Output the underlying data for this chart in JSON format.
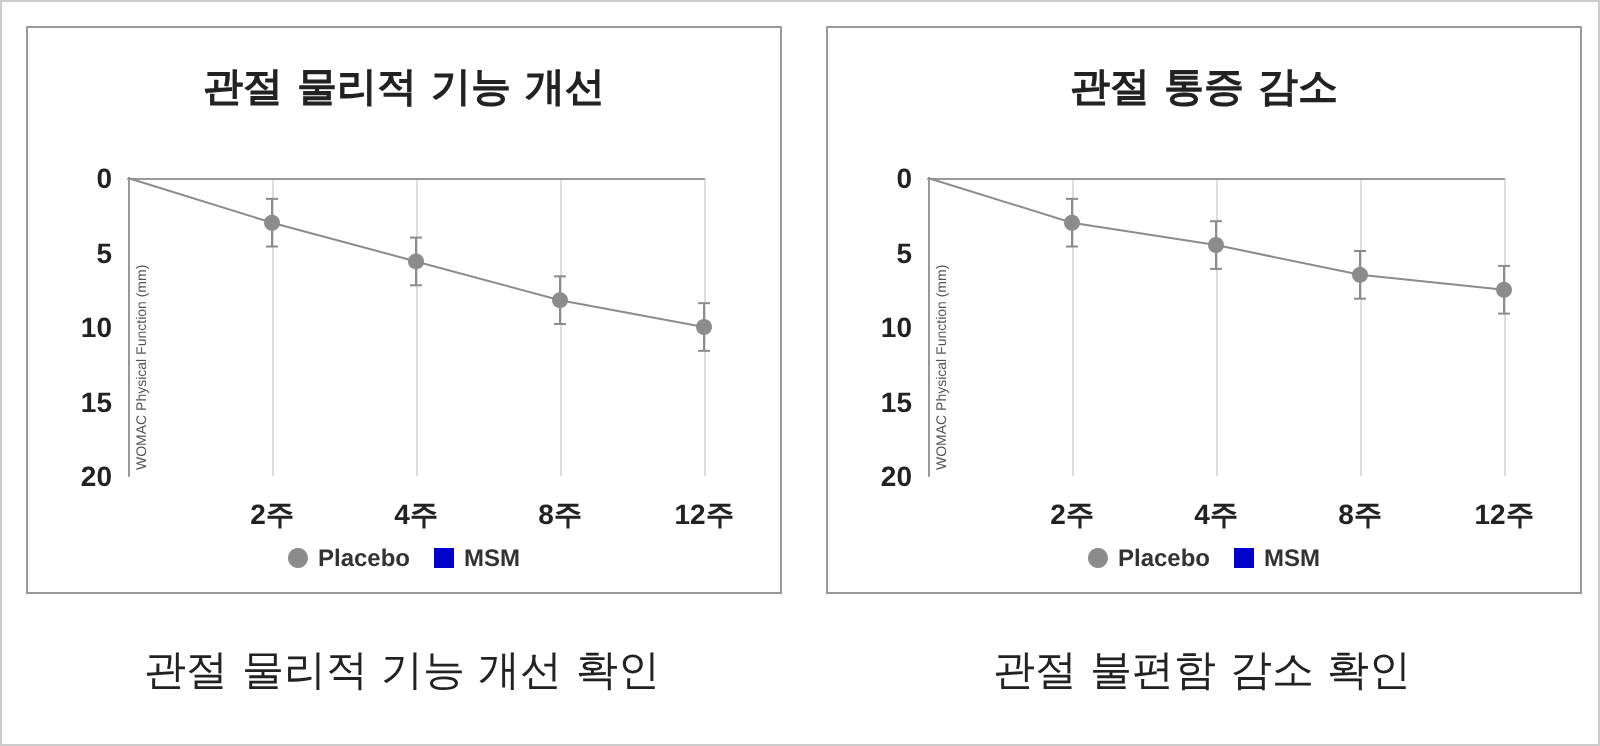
{
  "chart_data": [
    {
      "type": "line",
      "title": "관절 물리적 기능 개선",
      "ylabel": "WOMAC Physical Function (mm)",
      "categories": [
        null,
        "2주",
        "4주",
        "8주",
        "12주"
      ],
      "ylim": [
        20,
        0
      ],
      "yticks": [
        0,
        5,
        10,
        15,
        20
      ],
      "grid": "x",
      "legend": "bottom",
      "marker": "circle",
      "annotations": [
        "관절 물리적 기능 개선 확인"
      ],
      "series": [
        {
          "name": "Placebo",
          "color": "#8c8c8c",
          "values": [
            0,
            3,
            5.6,
            8.2,
            10
          ],
          "errors": [
            null,
            1.6,
            1.6,
            1.6,
            1.6
          ]
        },
        {
          "name": "MSM",
          "color": "#0000cc",
          "marker": "square",
          "values": [
            null,
            null,
            null,
            null,
            null
          ]
        }
      ]
    },
    {
      "type": "line",
      "title": "관절 통증 감소",
      "ylabel": "WOMAC Physical Function (mm)",
      "categories": [
        null,
        "2주",
        "4주",
        "8주",
        "12주"
      ],
      "ylim": [
        20,
        0
      ],
      "yticks": [
        0,
        5,
        10,
        15,
        20
      ],
      "grid": "x",
      "legend": "bottom",
      "marker": "circle",
      "annotations": [
        "관절 불편함 감소 확인"
      ],
      "series": [
        {
          "name": "Placebo",
          "color": "#8c8c8c",
          "values": [
            0,
            3,
            4.5,
            6.5,
            7.5
          ],
          "errors": [
            null,
            1.6,
            1.6,
            1.6,
            1.6
          ]
        },
        {
          "name": "MSM",
          "color": "#0000cc",
          "marker": "square",
          "values": [
            null,
            null,
            null,
            null,
            null
          ]
        }
      ]
    }
  ]
}
